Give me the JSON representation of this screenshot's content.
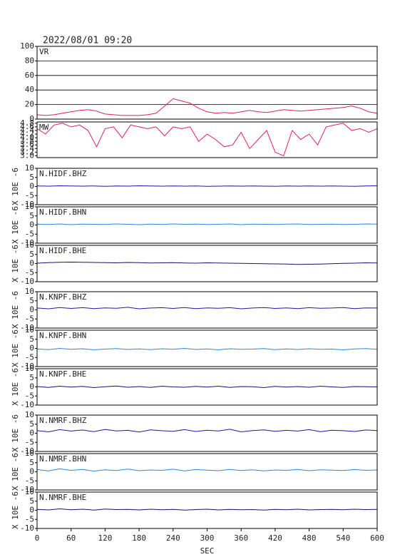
{
  "chart_data": [
    {
      "type": "line",
      "title": "2022/08/01 09:20",
      "label": "VR",
      "color": "#e0205a",
      "grid": true,
      "xlim": [
        0,
        600
      ],
      "ylim": [
        0,
        100
      ],
      "yticks": [
        0,
        20,
        40,
        60,
        80,
        100
      ],
      "x": [
        0,
        15,
        30,
        45,
        60,
        75,
        90,
        105,
        120,
        135,
        150,
        165,
        180,
        195,
        210,
        225,
        240,
        255,
        270,
        285,
        300,
        315,
        330,
        345,
        360,
        375,
        390,
        405,
        420,
        435,
        450,
        465,
        480,
        495,
        510,
        525,
        540,
        555,
        570,
        585,
        600
      ],
      "values": [
        6,
        5,
        6,
        8,
        10,
        12,
        13,
        11,
        7,
        6,
        5,
        5,
        5,
        6,
        8,
        18,
        28,
        25,
        22,
        15,
        10,
        8,
        9,
        8,
        10,
        12,
        10,
        9,
        11,
        13,
        12,
        11,
        12,
        13,
        14,
        15,
        16,
        18,
        15,
        10,
        8
      ]
    },
    {
      "type": "line",
      "label": "MW",
      "color": "#e0205a",
      "xlim": [
        0,
        600
      ],
      "ylim": [
        2.9,
        4.87
      ],
      "yticks": [
        {
          "value": 3,
          "label": "3.0"
        },
        3.2,
        3.4,
        3.6,
        3.8,
        {
          "value": 4,
          "label": "4.0"
        },
        4.2,
        4.4,
        4.6,
        4.8
      ],
      "x": [
        0,
        15,
        30,
        45,
        60,
        75,
        90,
        105,
        120,
        135,
        150,
        165,
        180,
        195,
        210,
        225,
        240,
        255,
        270,
        285,
        300,
        315,
        330,
        345,
        360,
        375,
        390,
        405,
        420,
        435,
        450,
        465,
        480,
        495,
        510,
        525,
        540,
        555,
        570,
        585,
        600
      ],
      "values": [
        4.5,
        4.2,
        4.7,
        4.8,
        4.6,
        4.7,
        4.4,
        3.5,
        4.5,
        4.6,
        4.0,
        4.7,
        4.6,
        4.5,
        4.6,
        4.1,
        4.6,
        4.5,
        4.6,
        3.8,
        4.2,
        3.9,
        3.5,
        3.6,
        4.3,
        3.4,
        3.9,
        4.4,
        3.2,
        3.0,
        4.4,
        3.9,
        4.2,
        3.6,
        4.6,
        4.7,
        4.8,
        4.4,
        4.5,
        4.3,
        4.5
      ]
    },
    {
      "type": "line",
      "label": "N.HIDF.BHZ",
      "ylabel": "X 10E -6",
      "color": "#1a1aa8",
      "xlim": [
        0,
        600
      ],
      "ylim": [
        -10,
        10
      ],
      "yticks": [
        -10,
        -5,
        0,
        5,
        10
      ],
      "x": [
        0,
        20,
        40,
        60,
        80,
        100,
        120,
        140,
        160,
        180,
        200,
        220,
        240,
        260,
        280,
        300,
        320,
        340,
        360,
        380,
        400,
        420,
        440,
        460,
        480,
        500,
        520,
        540,
        560,
        580,
        600
      ],
      "values": [
        0.3,
        0.2,
        0.4,
        0.3,
        0.2,
        0.3,
        0.1,
        0.3,
        0.2,
        0.4,
        0.3,
        0.2,
        0.3,
        0.2,
        0.3,
        0.1,
        0.2,
        0.3,
        0.2,
        0.3,
        0.2,
        0.1,
        0.3,
        0.2,
        0.3,
        0.2,
        0.3,
        0.2,
        0.1,
        0.3,
        0.4
      ]
    },
    {
      "type": "line",
      "label": "N.HIDF.BHN",
      "ylabel": "X 10E -6",
      "color": "#2b86e0",
      "xlim": [
        0,
        600
      ],
      "ylim": [
        -10,
        10
      ],
      "yticks": [
        -10,
        -5,
        0,
        5,
        10
      ],
      "x": [
        0,
        20,
        40,
        60,
        80,
        100,
        120,
        140,
        160,
        180,
        200,
        220,
        240,
        260,
        280,
        300,
        320,
        340,
        360,
        380,
        400,
        420,
        440,
        460,
        480,
        500,
        520,
        540,
        560,
        580,
        600
      ],
      "values": [
        0.5,
        0.3,
        0.6,
        0.2,
        0.5,
        0.4,
        0.3,
        0.6,
        0.4,
        0.2,
        0.5,
        0.3,
        0.6,
        0.4,
        0.5,
        0.3,
        0.4,
        0.6,
        0.2,
        0.5,
        0.4,
        0.3,
        0.5,
        0.6,
        0.3,
        0.4,
        0.5,
        0.3,
        0.4,
        0.6,
        0.5
      ]
    },
    {
      "type": "line",
      "label": "N.HIDF.BHE",
      "ylabel": "X 10E -6",
      "color": "#141466",
      "xlim": [
        0,
        600
      ],
      "ylim": [
        -10,
        10
      ],
      "yticks": [
        -10,
        -5,
        0,
        5,
        10
      ],
      "x": [
        0,
        20,
        40,
        60,
        80,
        100,
        120,
        140,
        160,
        180,
        200,
        220,
        240,
        260,
        280,
        300,
        320,
        340,
        360,
        380,
        400,
        420,
        440,
        460,
        480,
        500,
        520,
        540,
        560,
        580,
        600
      ],
      "values": [
        0.2,
        0.5,
        0.7,
        0.8,
        0.7,
        0.6,
        0.5,
        0.4,
        0.6,
        0.5,
        0.3,
        0.4,
        0.5,
        0.3,
        0.2,
        0.4,
        0.3,
        0.2,
        0.1,
        0.0,
        -0.1,
        -0.2,
        -0.3,
        -0.5,
        -0.4,
        -0.3,
        -0.1,
        0.1,
        0.2,
        0.4,
        0.3
      ]
    },
    {
      "type": "line",
      "label": "N.KNPF.BHZ",
      "ylabel": "X 10E -6",
      "color": "#1a1aa8",
      "xlim": [
        0,
        600
      ],
      "ylim": [
        -10,
        10
      ],
      "yticks": [
        -10,
        -5,
        0,
        5,
        10
      ],
      "x": [
        0,
        20,
        40,
        60,
        80,
        100,
        120,
        140,
        160,
        180,
        200,
        220,
        240,
        260,
        280,
        300,
        320,
        340,
        360,
        380,
        400,
        420,
        440,
        460,
        480,
        500,
        520,
        540,
        560,
        580,
        600
      ],
      "values": [
        1.0,
        0.6,
        1.3,
        0.8,
        1.2,
        0.7,
        1.1,
        0.9,
        1.4,
        0.6,
        1.0,
        1.2,
        0.8,
        1.3,
        0.7,
        1.1,
        0.9,
        1.2,
        0.6,
        1.0,
        1.3,
        0.8,
        1.1,
        0.7,
        1.2,
        0.9,
        1.0,
        1.3,
        0.7,
        1.1,
        1.0
      ]
    },
    {
      "type": "line",
      "label": "N.KNPF.BHN",
      "ylabel": "X 10E -6",
      "color": "#2b86e0",
      "xlim": [
        0,
        600
      ],
      "ylim": [
        -10,
        10
      ],
      "yticks": [
        -10,
        -5,
        0,
        5,
        10
      ],
      "x": [
        0,
        20,
        40,
        60,
        80,
        100,
        120,
        140,
        160,
        180,
        200,
        220,
        240,
        260,
        280,
        300,
        320,
        340,
        360,
        380,
        400,
        420,
        440,
        460,
        480,
        500,
        520,
        540,
        560,
        580,
        600
      ],
      "values": [
        -0.3,
        -0.7,
        0.0,
        -0.5,
        -0.2,
        -0.8,
        -0.4,
        -0.1,
        -0.6,
        -0.3,
        -0.7,
        -0.2,
        -0.5,
        0.0,
        -0.6,
        -0.3,
        -0.8,
        -0.2,
        -0.5,
        -0.4,
        -0.1,
        -0.7,
        -0.3,
        -0.6,
        -0.2,
        -0.5,
        -0.4,
        -0.8,
        -0.3,
        -0.1,
        -0.5
      ]
    },
    {
      "type": "line",
      "label": "N.KNPF.BHE",
      "ylabel": "X 10E -6",
      "color": "#141466",
      "xlim": [
        0,
        600
      ],
      "ylim": [
        -10,
        10
      ],
      "yticks": [
        -10,
        -5,
        0,
        5,
        10
      ],
      "x": [
        0,
        20,
        40,
        60,
        80,
        100,
        120,
        140,
        160,
        180,
        200,
        220,
        240,
        260,
        280,
        300,
        320,
        340,
        360,
        380,
        400,
        420,
        440,
        460,
        480,
        500,
        520,
        540,
        560,
        580,
        600
      ],
      "values": [
        0.2,
        -0.3,
        0.4,
        -0.1,
        0.3,
        -0.4,
        0.1,
        0.5,
        -0.2,
        0.2,
        -0.3,
        0.4,
        0.0,
        -0.2,
        0.3,
        -0.1,
        0.4,
        -0.3,
        0.2,
        0.1,
        -0.4,
        0.3,
        -0.1,
        0.2,
        -0.2,
        0.4,
        0.0,
        -0.3,
        0.2,
        0.1,
        0.0
      ]
    },
    {
      "type": "line",
      "label": "N.NMRF.BHZ",
      "ylabel": "X 10E -6",
      "color": "#1a1aa8",
      "xlim": [
        0,
        600
      ],
      "ylim": [
        -10,
        10
      ],
      "yticks": [
        -10,
        -5,
        0,
        5,
        10
      ],
      "x": [
        0,
        20,
        40,
        60,
        80,
        100,
        120,
        140,
        160,
        180,
        200,
        220,
        240,
        260,
        280,
        300,
        320,
        340,
        360,
        380,
        400,
        420,
        440,
        460,
        480,
        500,
        520,
        540,
        560,
        580,
        600
      ],
      "values": [
        1.5,
        0.8,
        2.0,
        1.2,
        1.8,
        0.9,
        2.1,
        1.3,
        1.6,
        0.7,
        1.9,
        1.4,
        1.1,
        2.0,
        1.0,
        1.7,
        1.3,
        2.2,
        0.8,
        1.5,
        1.9,
        1.1,
        1.6,
        1.2,
        2.0,
        0.9,
        1.7,
        1.4,
        1.0,
        1.8,
        1.5
      ]
    },
    {
      "type": "line",
      "label": "N.NMRF.BHN",
      "ylabel": "X 10E -6",
      "color": "#2b86e0",
      "xlim": [
        0,
        600
      ],
      "ylim": [
        -10,
        10
      ],
      "yticks": [
        -10,
        -5,
        0,
        5,
        10
      ],
      "x": [
        0,
        20,
        40,
        60,
        80,
        100,
        120,
        140,
        160,
        180,
        200,
        220,
        240,
        260,
        280,
        300,
        320,
        340,
        360,
        380,
        400,
        420,
        440,
        460,
        480,
        500,
        520,
        540,
        560,
        580,
        600
      ],
      "values": [
        1.2,
        0.5,
        1.6,
        0.8,
        1.3,
        0.4,
        1.1,
        0.7,
        1.5,
        0.6,
        1.0,
        0.8,
        1.4,
        0.5,
        1.2,
        0.9,
        0.6,
        1.3,
        0.7,
        1.1,
        0.5,
        1.0,
        0.8,
        1.3,
        0.6,
        1.1,
        0.9,
        0.7,
        1.2,
        0.8,
        1.0
      ]
    },
    {
      "type": "line",
      "label": "N.NMRF.BHE",
      "ylabel": "X 10E -6",
      "color": "#141466",
      "xlim": [
        0,
        600
      ],
      "ylim": [
        -10,
        10
      ],
      "yticks": [
        -10,
        -5,
        0,
        5,
        10
      ],
      "xlabel": "SEC",
      "xticks": [
        0,
        60,
        120,
        180,
        240,
        300,
        360,
        420,
        480,
        540,
        600
      ],
      "x": [
        0,
        20,
        40,
        60,
        80,
        100,
        120,
        140,
        160,
        180,
        200,
        220,
        240,
        260,
        280,
        300,
        320,
        340,
        360,
        380,
        400,
        420,
        440,
        460,
        480,
        500,
        520,
        540,
        560,
        580,
        600
      ],
      "values": [
        0.5,
        0.2,
        0.8,
        0.3,
        0.6,
        0.1,
        0.7,
        0.4,
        0.5,
        0.2,
        0.6,
        0.3,
        0.5,
        0.1,
        0.4,
        0.6,
        0.2,
        0.5,
        0.3,
        0.4,
        0.1,
        0.5,
        0.3,
        0.6,
        0.2,
        0.4,
        0.5,
        0.3,
        0.6,
        0.4,
        0.5
      ]
    }
  ]
}
